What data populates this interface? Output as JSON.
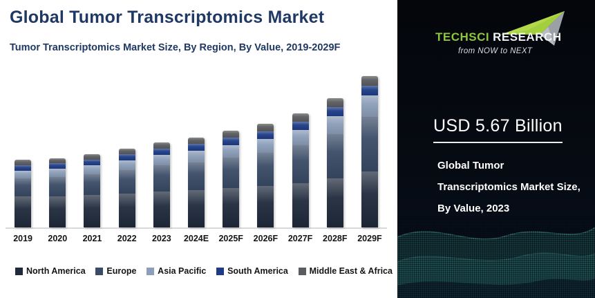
{
  "header": {
    "title": "Global Tumor Transcriptomics Market",
    "subtitle": "Tumor Transcriptomics Market Size, By Region, By Value, 2019-2029F"
  },
  "chart_data": {
    "type": "bar",
    "stacked": true,
    "title": "Tumor Transcriptomics Market Size, By Region, By Value, 2019-2029F",
    "unit": "USD Billion",
    "categories": [
      "2019",
      "2020",
      "2021",
      "2022",
      "2023",
      "2024E",
      "2025F",
      "2026F",
      "2027F",
      "2028F",
      "2029F"
    ],
    "series": [
      {
        "name": "North America",
        "color": "#1f2a3c",
        "values": [
          2.08,
          2.1,
          2.17,
          2.28,
          2.42,
          2.5,
          2.62,
          2.75,
          2.95,
          3.26,
          3.72
        ]
      },
      {
        "name": "Europe",
        "color": "#3a4b66",
        "values": [
          1.18,
          1.27,
          1.4,
          1.55,
          1.73,
          1.86,
          2.05,
          2.25,
          2.55,
          2.99,
          3.68
        ]
      },
      {
        "name": "Asia Pacific",
        "color": "#8c9eb9",
        "values": [
          0.52,
          0.54,
          0.58,
          0.64,
          0.7,
          0.75,
          0.82,
          0.9,
          1.02,
          1.18,
          1.43
        ]
      },
      {
        "name": "South America",
        "color": "#1e3c86",
        "values": [
          0.38,
          0.38,
          0.38,
          0.4,
          0.43,
          0.45,
          0.49,
          0.52,
          0.56,
          0.6,
          0.64
        ]
      },
      {
        "name": "Middle East & Africa",
        "color": "#5a5c5f",
        "values": [
          0.34,
          0.34,
          0.35,
          0.37,
          0.39,
          0.43,
          0.46,
          0.49,
          0.51,
          0.58,
          0.65
        ]
      }
    ],
    "totals": [
      4.5,
      4.63,
      4.88,
      5.24,
      5.67,
      5.99,
      6.44,
      6.91,
      7.59,
      8.61,
      10.12
    ],
    "ylim": [
      0,
      10.7
    ],
    "xlabel": "",
    "ylabel": "",
    "grid": false,
    "legend_position": "bottom"
  },
  "side_panel": {
    "logo": {
      "brand_primary": "TechSci",
      "brand_secondary": "Research",
      "tagline": "from NOW to NEXT",
      "brand_green": "#8dc63f"
    },
    "highlight_value": "USD 5.67 Billion",
    "caption_lines": [
      "Global Tumor",
      "Transcriptomics Market Size,",
      "By Value, 2023"
    ]
  },
  "colors": {
    "title_navy": "#1f3864",
    "axis_line": "#d9d9d9",
    "panel_bg": "#05080f",
    "wave_teal": "#2e7a72"
  }
}
